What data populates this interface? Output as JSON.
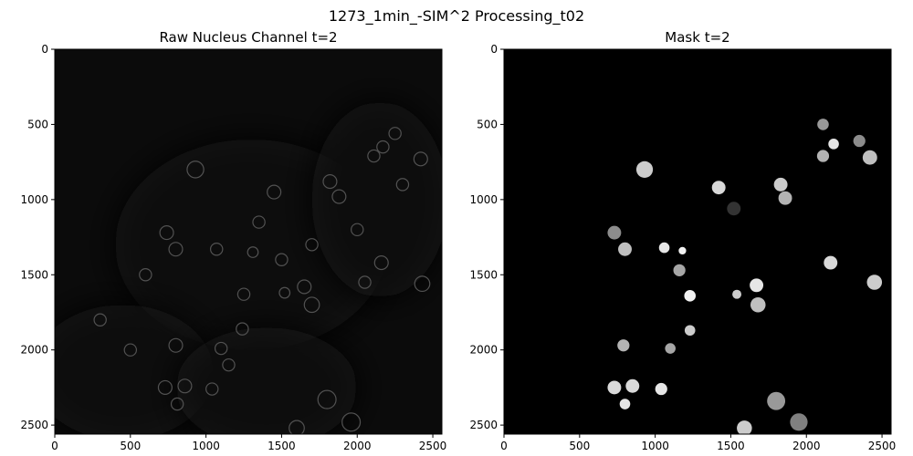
{
  "figure": {
    "title": "1273_1min_-SIM^2 Processing_t02"
  },
  "chart_data": [
    {
      "type": "heatmap",
      "title": "Raw Nucleus Channel t=2",
      "xlim": [
        0,
        2560
      ],
      "ylim": [
        2560,
        0
      ],
      "xticks": [
        0,
        500,
        1000,
        1500,
        2000,
        2500
      ],
      "yticks": [
        0,
        500,
        1000,
        1500,
        2000,
        2500
      ],
      "colormap": "gray",
      "background": "#0b0b0b",
      "regions": [
        {
          "cx": 1300,
          "cy": 1300,
          "rx": 900,
          "ry": 700,
          "level": 0.06
        },
        {
          "cx": 2150,
          "cy": 1000,
          "rx": 450,
          "ry": 650,
          "level": 0.05
        },
        {
          "cx": 450,
          "cy": 2150,
          "rx": 600,
          "ry": 450,
          "level": 0.05
        },
        {
          "cx": 1400,
          "cy": 2250,
          "rx": 600,
          "ry": 400,
          "level": 0.04
        }
      ],
      "nuclei": [
        [
          930,
          800,
          55
        ],
        [
          1450,
          950,
          45
        ],
        [
          1820,
          880,
          45
        ],
        [
          2170,
          650,
          40
        ],
        [
          2420,
          730,
          45
        ],
        [
          2250,
          560,
          40
        ],
        [
          740,
          1220,
          45
        ],
        [
          800,
          1330,
          45
        ],
        [
          1070,
          1330,
          40
        ],
        [
          1310,
          1350,
          35
        ],
        [
          1650,
          1580,
          45
        ],
        [
          1700,
          1700,
          50
        ],
        [
          1250,
          1630,
          40
        ],
        [
          2160,
          1420,
          45
        ],
        [
          2430,
          1560,
          50
        ],
        [
          800,
          1970,
          45
        ],
        [
          1100,
          1990,
          40
        ],
        [
          1240,
          1860,
          40
        ],
        [
          730,
          2250,
          45
        ],
        [
          860,
          2240,
          45
        ],
        [
          1040,
          2260,
          40
        ],
        [
          810,
          2360,
          40
        ],
        [
          1800,
          2330,
          60
        ],
        [
          1960,
          2480,
          60
        ],
        [
          1600,
          2520,
          50
        ],
        [
          1520,
          1620,
          35
        ],
        [
          1880,
          980,
          45
        ],
        [
          2110,
          710,
          40
        ],
        [
          600,
          1500,
          40
        ],
        [
          1350,
          1150,
          40
        ],
        [
          2000,
          1200,
          40
        ],
        [
          1500,
          1400,
          40
        ],
        [
          300,
          1800,
          40
        ],
        [
          500,
          2000,
          40
        ],
        [
          1150,
          2100,
          40
        ],
        [
          2300,
          900,
          40
        ],
        [
          2050,
          1550,
          40
        ],
        [
          1700,
          1300,
          40
        ]
      ]
    },
    {
      "type": "heatmap",
      "title": "Mask t=2",
      "xlim": [
        0,
        2560
      ],
      "ylim": [
        2560,
        0
      ],
      "xticks": [
        0,
        500,
        1000,
        1500,
        2000,
        2500
      ],
      "yticks": [
        0,
        500,
        1000,
        1500,
        2000,
        2500
      ],
      "colormap": "gray",
      "background": "#000000",
      "objects": [
        [
          930,
          800,
          55,
          0.8
        ],
        [
          1420,
          920,
          45,
          0.85
        ],
        [
          1830,
          900,
          45,
          0.8
        ],
        [
          2110,
          500,
          38,
          0.6
        ],
        [
          2180,
          630,
          35,
          0.9
        ],
        [
          2350,
          610,
          40,
          0.55
        ],
        [
          2110,
          710,
          40,
          0.7
        ],
        [
          2420,
          720,
          48,
          0.75
        ],
        [
          1860,
          990,
          45,
          0.7
        ],
        [
          1520,
          1060,
          45,
          0.2
        ],
        [
          730,
          1220,
          45,
          0.55
        ],
        [
          800,
          1330,
          45,
          0.75
        ],
        [
          1060,
          1320,
          35,
          0.9
        ],
        [
          1180,
          1340,
          25,
          0.95
        ],
        [
          1160,
          1470,
          40,
          0.65
        ],
        [
          1230,
          1640,
          38,
          0.95
        ],
        [
          1540,
          1630,
          30,
          0.8
        ],
        [
          1670,
          1570,
          45,
          0.9
        ],
        [
          1680,
          1700,
          50,
          0.75
        ],
        [
          2160,
          1420,
          45,
          0.85
        ],
        [
          2450,
          1550,
          50,
          0.8
        ],
        [
          790,
          1970,
          40,
          0.7
        ],
        [
          1100,
          1990,
          35,
          0.65
        ],
        [
          1230,
          1870,
          35,
          0.8
        ],
        [
          730,
          2250,
          45,
          0.85
        ],
        [
          850,
          2240,
          45,
          0.85
        ],
        [
          1040,
          2260,
          40,
          0.9
        ],
        [
          800,
          2360,
          35,
          0.9
        ],
        [
          1800,
          2340,
          60,
          0.6
        ],
        [
          1950,
          2480,
          58,
          0.5
        ],
        [
          1590,
          2520,
          50,
          0.8
        ]
      ]
    }
  ]
}
